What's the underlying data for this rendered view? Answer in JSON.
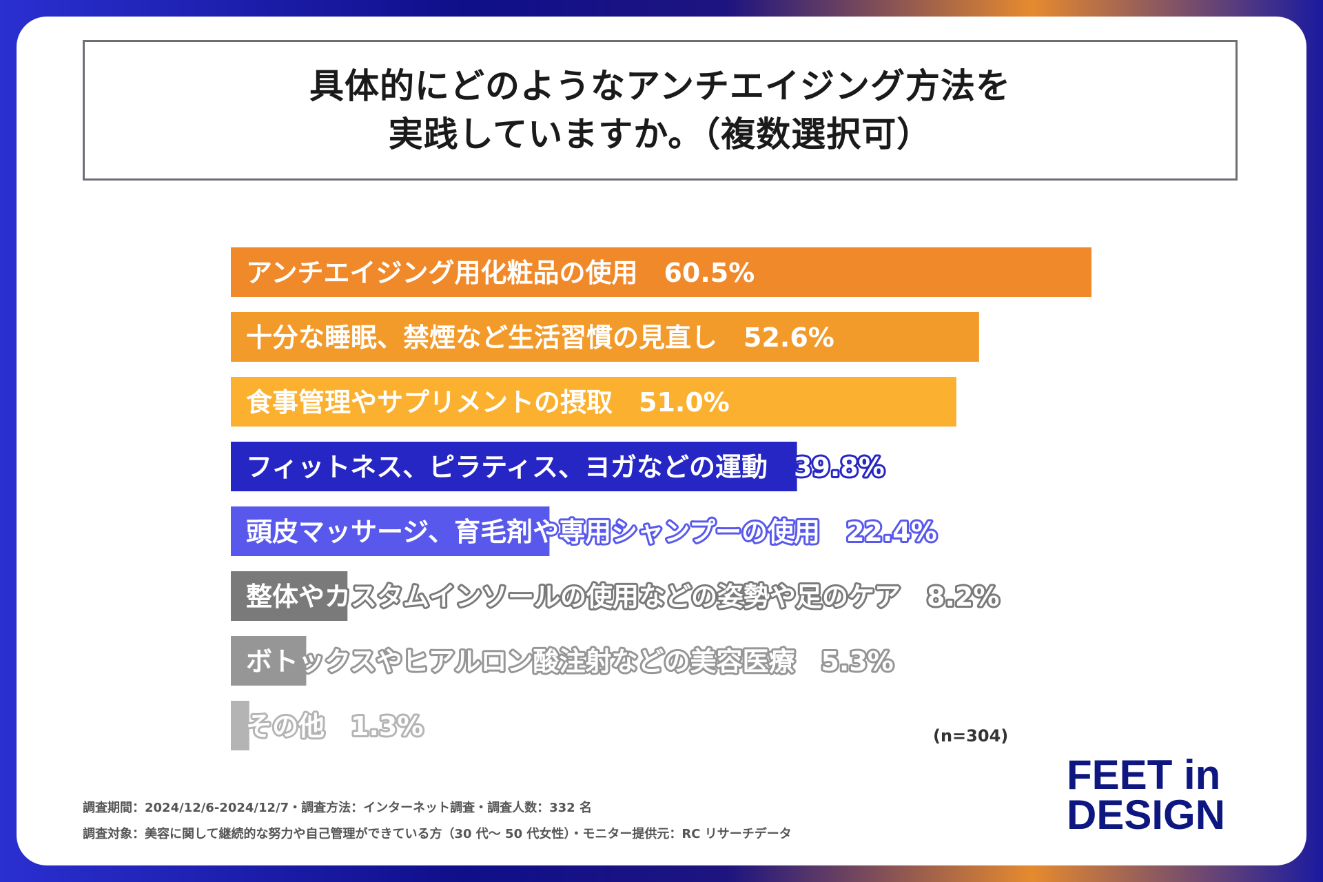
{
  "title_lines": [
    "具体的にどのようなアンチエイジング方法を",
    "実践していますか。（複数選択可）"
  ],
  "chart_data": {
    "type": "bar",
    "orientation": "horizontal",
    "xlim": [
      0,
      60.5
    ],
    "categories": [
      "アンチエイジング用化粧品の使用",
      "十分な睡眠、禁煙など生活習慣の見直し",
      "食事管理やサプリメントの摂取",
      "フィットネス、ピラティス、ヨガなどの運動",
      "頭皮マッサージ、育毛剤や専用シャンプーの使用",
      "整体やカスタムインソールの使用などの姿勢や足のケア",
      "ボトックスやヒアルロン酸注射などの美容医療",
      "その他"
    ],
    "values": [
      60.5,
      52.6,
      51.0,
      39.8,
      22.4,
      8.2,
      5.3,
      1.3
    ],
    "value_labels": [
      "60.5%",
      "52.6%",
      "51.0%",
      "39.8%",
      "22.4%",
      "8.2%",
      "5.3%",
      "1.3%"
    ],
    "bar_colors": [
      "#f0892a",
      "#f29a2a",
      "#fbb02f",
      "#2626c4",
      "#5858ec",
      "#7a7a7a",
      "#969696",
      "#b4b4b4"
    ],
    "grid": false,
    "legend": "none"
  },
  "sample_note": "(n=304)",
  "footer": {
    "line1": "調査期間：2024/12/6-2024/12/7・調査方法：インターネット調査・調査人数：332 名",
    "line2": "調査対象：美容に関して継続的な努力や自己管理ができている方（30 代～ 50 代女性）・モニター提供元：RC リサーチデータ"
  },
  "logo": {
    "line1": "FEET in",
    "line2": "DESIGN"
  }
}
